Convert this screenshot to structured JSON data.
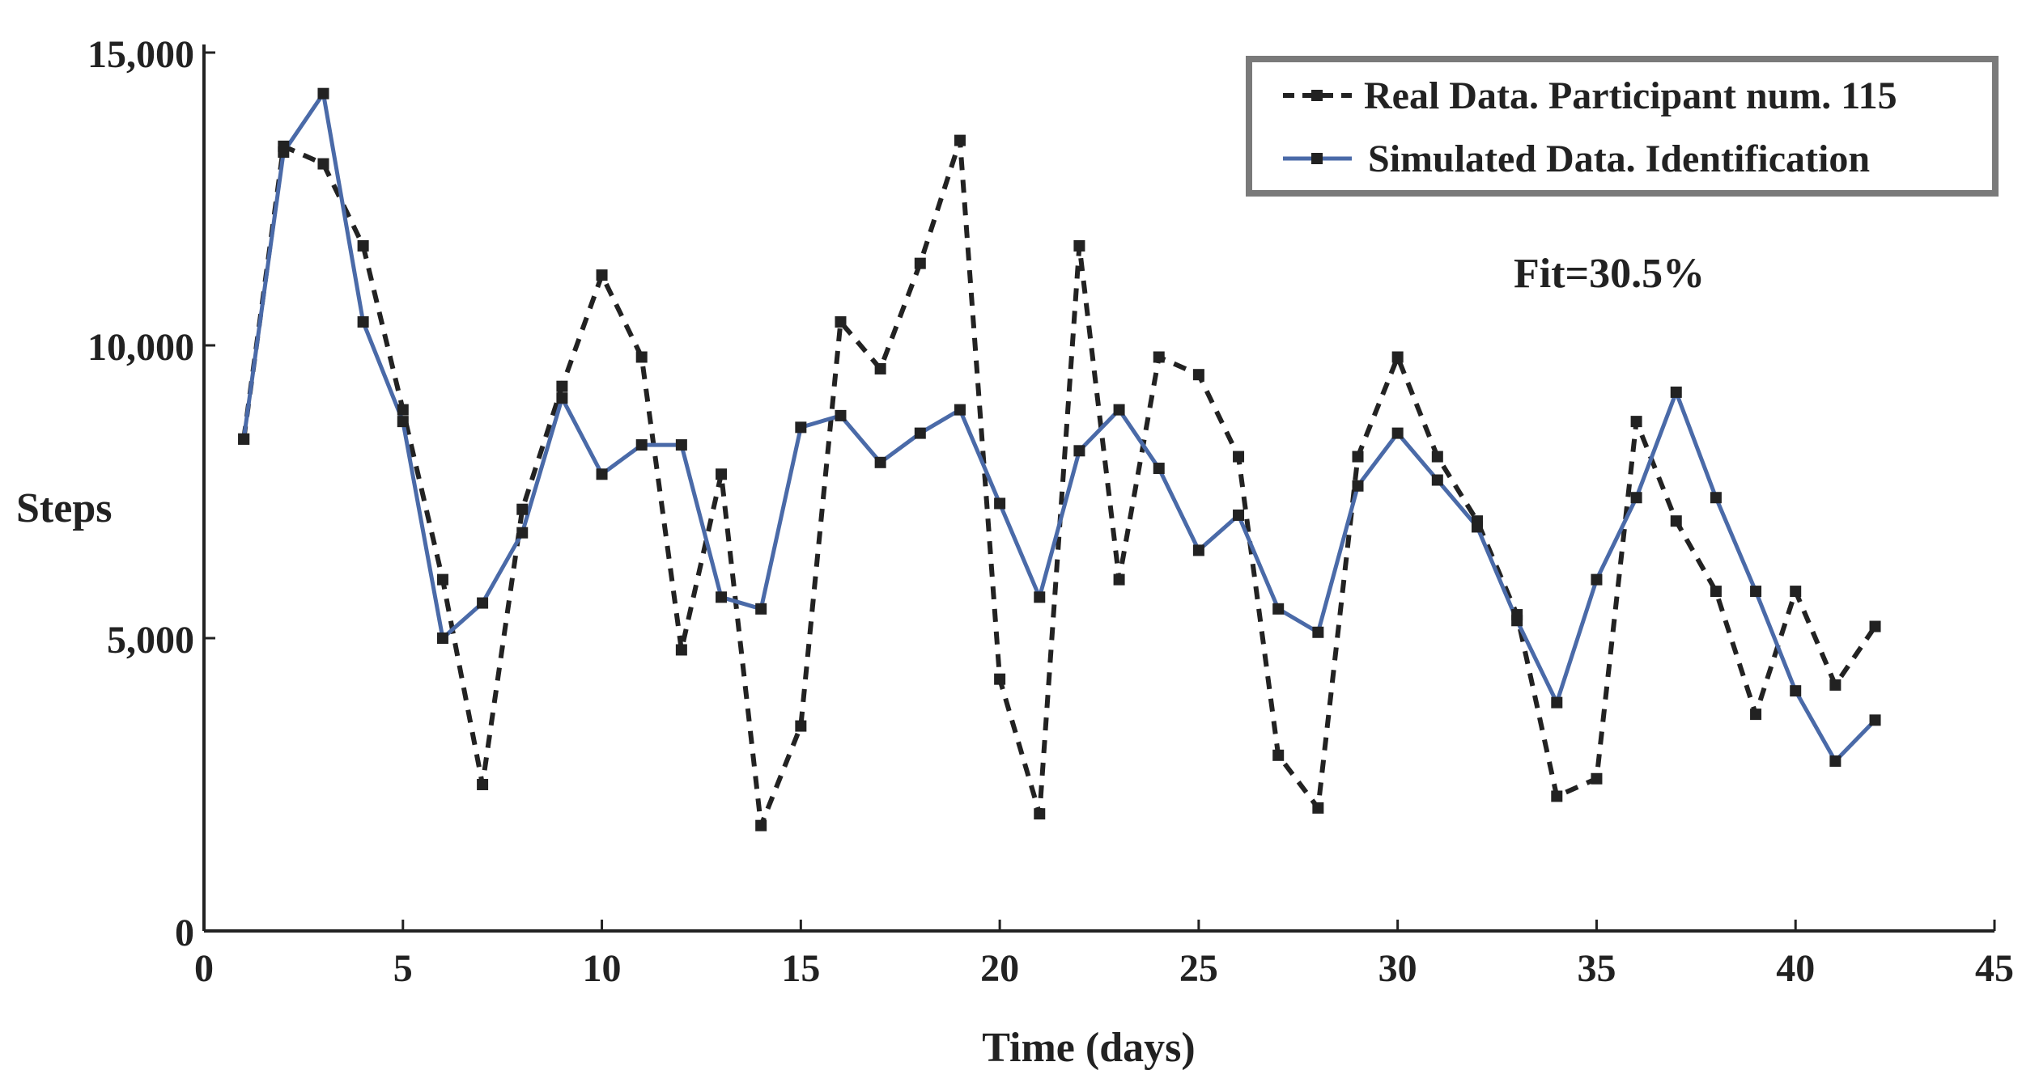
{
  "chart_data": {
    "type": "line",
    "title": "",
    "xlabel": "Time (days)",
    "ylabel": "Steps",
    "xlim": [
      0,
      45
    ],
    "ylim": [
      0,
      15000
    ],
    "xticks": [
      0,
      5,
      10,
      15,
      20,
      25,
      30,
      35,
      40,
      45
    ],
    "xtick_labels": [
      "0",
      "5",
      "10",
      "15",
      "20",
      "25",
      "30",
      "35",
      "40",
      "45"
    ],
    "yticks": [
      0,
      5000,
      10000,
      15000
    ],
    "ytick_labels": [
      "0",
      "5,000",
      "10,000",
      "15,000"
    ],
    "grid": false,
    "legend_position": "top-right",
    "annotation": "Fit=30.5%",
    "x": [
      1,
      2,
      3,
      4,
      5,
      6,
      7,
      8,
      9,
      10,
      11,
      12,
      13,
      14,
      15,
      16,
      17,
      18,
      19,
      20,
      21,
      22,
      23,
      24,
      25,
      26,
      27,
      28,
      29,
      30,
      31,
      32,
      33,
      34,
      35,
      36,
      37,
      38,
      39,
      40,
      41,
      42
    ],
    "series": [
      {
        "name": "Real Data. Participant num. 115",
        "style": "dashed",
        "color": "#222222",
        "values": [
          8400,
          13400,
          13100,
          11700,
          8900,
          6000,
          2500,
          7200,
          9300,
          11200,
          9800,
          4800,
          7800,
          1800,
          3500,
          10400,
          9600,
          11400,
          13500,
          4300,
          2000,
          11700,
          6000,
          9800,
          9500,
          8100,
          3000,
          2100,
          8100,
          9800,
          8100,
          7000,
          5400,
          2300,
          2600,
          8700,
          7000,
          5800,
          3700,
          5800,
          4200,
          5200
        ]
      },
      {
        "name": "Simulated Data. Identification",
        "style": "solid",
        "color": "#4a6aa8",
        "values": [
          8400,
          13300,
          14300,
          10400,
          8700,
          5000,
          5600,
          6800,
          9100,
          7800,
          8300,
          8300,
          5700,
          5500,
          8600,
          8800,
          8000,
          8500,
          8900,
          7300,
          5700,
          8200,
          8900,
          7900,
          6500,
          7100,
          5500,
          5100,
          7600,
          8500,
          7700,
          6900,
          5300,
          3900,
          6000,
          7400,
          9200,
          7400,
          5800,
          4100,
          2900,
          3600
        ]
      }
    ]
  },
  "colors": {
    "axis": "#222222",
    "legend_border": "#7a7a7a"
  }
}
